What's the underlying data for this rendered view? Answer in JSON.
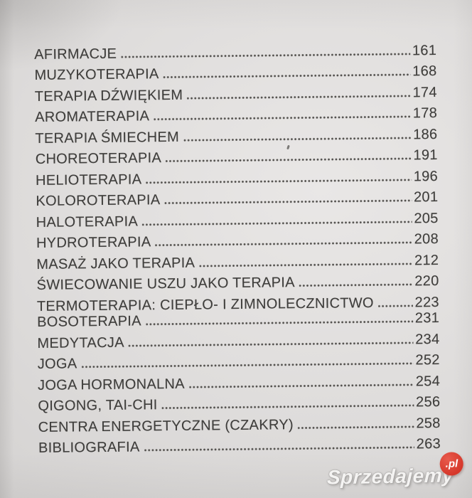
{
  "toc": {
    "entries": [
      {
        "title": "AFIRMACJE",
        "page": "161"
      },
      {
        "title": "MUZYKOTERAPIA",
        "page": "168"
      },
      {
        "title": "TERAPIA DŹWIĘKIEM",
        "page": "174"
      },
      {
        "title": "AROMATERAPIA",
        "page": "178"
      },
      {
        "title": "TERAPIA ŚMIECHEM",
        "page": "186"
      },
      {
        "title": "CHOREOTERAPIA",
        "page": "191"
      },
      {
        "title": "HELIOTERAPIA",
        "page": "196"
      },
      {
        "title": "KOLOROTERAPIA",
        "page": "201"
      },
      {
        "title": "HALOTERAPIA",
        "page": "205"
      },
      {
        "title": "HYDROTERAPIA",
        "page": "208"
      },
      {
        "title": "MASAŻ JAKO TERAPIA",
        "page": "212"
      },
      {
        "title": "ŚWIECOWANIE USZU JAKO TERAPIA",
        "page": "220"
      },
      {
        "title": "TERMOTERAPIA: CIEPŁO- I ZIMNOLECZNICTWO",
        "page": "223"
      },
      {
        "title": "BOSOTERAPIA",
        "page": "231",
        "tight": true
      },
      {
        "title": "MEDYTACJA",
        "page": "234"
      },
      {
        "title": "JOGA",
        "page": "252"
      },
      {
        "title": "JOGA HORMONALNA",
        "page": "254"
      },
      {
        "title": "QIGONG, TAI-CHI",
        "page": "256"
      },
      {
        "title": "CENTRA ENERGETYCZNE (CZAKRY)",
        "page": "258"
      },
      {
        "title": "BIBLIOGRAFIA",
        "page": "263"
      }
    ]
  },
  "watermark": {
    "brand": "Sprzedajemy",
    "tld": ".pl",
    "badge_color": "#d6382b"
  },
  "colors": {
    "paper": "#dcdad9",
    "ink": "#3f3e3c",
    "leader_dots": "#514f4c"
  }
}
